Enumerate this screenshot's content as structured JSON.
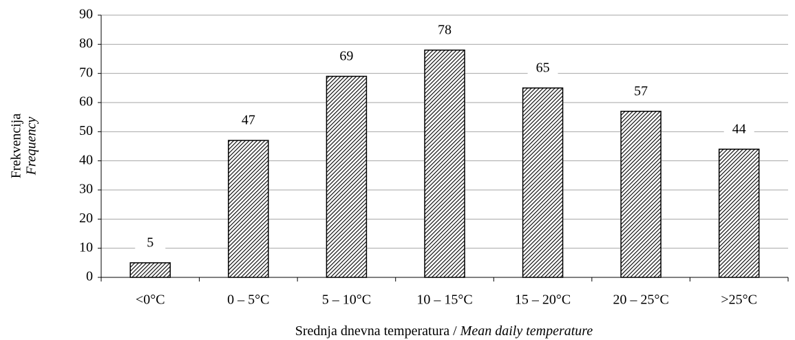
{
  "chart_data": {
    "type": "bar",
    "ylabel": [
      "Frekvencija",
      "Frequency"
    ],
    "xlabel": [
      "Srednja dnevna temperatura /",
      "Mean daily temperature"
    ],
    "categories": [
      "<0°C",
      "0 – 5°C",
      "5 – 10°C",
      "10 – 15°C",
      "15 – 20°C",
      "20 – 25°C",
      ">25°C"
    ],
    "values": [
      5,
      47,
      69,
      78,
      65,
      57,
      44
    ],
    "ylim": [
      0,
      90
    ],
    "yticks": [
      0,
      10,
      20,
      30,
      40,
      50,
      60,
      70,
      80,
      90
    ],
    "grid": true
  }
}
